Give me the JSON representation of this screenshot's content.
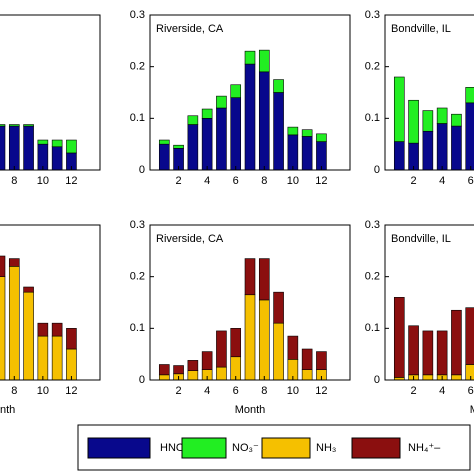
{
  "chart_data": [
    {
      "type": "bar",
      "stacked": true,
      "x": [
        7,
        8,
        9,
        10,
        11,
        12
      ],
      "xlim": [
        0,
        14
      ],
      "xticks": [
        8,
        10,
        12
      ],
      "ylim": [
        0,
        0.3
      ],
      "series": [
        {
          "name": "HNO₃",
          "color": "#08088c",
          "values": [
            0.085,
            0.085,
            0.085,
            0.05,
            0.045,
            0.033
          ]
        },
        {
          "name": "NO₃⁻",
          "color": "#22ee22",
          "values": [
            0.003,
            0.003,
            0.003,
            0.008,
            0.013,
            0.025
          ]
        }
      ]
    },
    {
      "type": "bar",
      "stacked": true,
      "title": "Riverside, CA",
      "x": [
        1,
        2,
        3,
        4,
        5,
        6,
        7,
        8,
        9,
        10,
        11,
        12
      ],
      "xlim": [
        0,
        14
      ],
      "xticks": [
        2,
        4,
        6,
        8,
        10,
        12
      ],
      "ylim": [
        0,
        0.3
      ],
      "yticks": [
        0,
        0.1,
        0.2,
        0.3
      ],
      "series": [
        {
          "name": "HNO₃",
          "color": "#08088c",
          "values": [
            0.05,
            0.042,
            0.088,
            0.1,
            0.12,
            0.14,
            0.205,
            0.19,
            0.15,
            0.068,
            0.065,
            0.055
          ]
        },
        {
          "name": "NO₃⁻",
          "color": "#22ee22",
          "values": [
            0.008,
            0.006,
            0.017,
            0.018,
            0.023,
            0.025,
            0.025,
            0.042,
            0.025,
            0.015,
            0.013,
            0.015
          ]
        }
      ]
    },
    {
      "type": "bar",
      "stacked": true,
      "title": "Bondville, IL",
      "x": [
        1,
        2,
        3,
        4,
        5,
        6
      ],
      "xlim": [
        0,
        14
      ],
      "xticks": [
        2,
        4,
        6
      ],
      "ylim": [
        0,
        0.3
      ],
      "yticks": [
        0,
        0.1,
        0.2,
        0.3
      ],
      "series": [
        {
          "name": "HNO₃",
          "color": "#08088c",
          "values": [
            0.055,
            0.052,
            0.075,
            0.09,
            0.085,
            0.13
          ]
        },
        {
          "name": "NO₃⁻",
          "color": "#22ee22",
          "values": [
            0.125,
            0.083,
            0.04,
            0.03,
            0.023,
            0.03
          ]
        }
      ]
    },
    {
      "type": "bar",
      "stacked": true,
      "xlabel": "Month",
      "x": [
        7,
        8,
        9,
        10,
        11,
        12
      ],
      "xlim": [
        0,
        14
      ],
      "xticks": [
        8,
        10,
        12
      ],
      "ylim": [
        0,
        0.3
      ],
      "series": [
        {
          "name": "NH₃",
          "color": "#f5c000",
          "values": [
            0.2,
            0.22,
            0.17,
            0.085,
            0.085,
            0.06
          ]
        },
        {
          "name": "NH₄⁺–",
          "color": "#8b0f0f",
          "values": [
            0.04,
            0.015,
            0.01,
            0.025,
            0.025,
            0.04
          ]
        }
      ]
    },
    {
      "type": "bar",
      "stacked": true,
      "title": "Riverside, CA",
      "xlabel": "Month",
      "x": [
        1,
        2,
        3,
        4,
        5,
        6,
        7,
        8,
        9,
        10,
        11,
        12
      ],
      "xlim": [
        0,
        14
      ],
      "xticks": [
        2,
        4,
        6,
        8,
        10,
        12
      ],
      "ylim": [
        0,
        0.3
      ],
      "yticks": [
        0,
        0.1,
        0.2,
        0.3
      ],
      "series": [
        {
          "name": "NH₃",
          "color": "#f5c000",
          "values": [
            0.01,
            0.012,
            0.018,
            0.02,
            0.025,
            0.045,
            0.165,
            0.155,
            0.11,
            0.04,
            0.02,
            0.02
          ]
        },
        {
          "name": "NH₄⁺–",
          "color": "#8b0f0f",
          "values": [
            0.02,
            0.016,
            0.02,
            0.035,
            0.07,
            0.055,
            0.07,
            0.08,
            0.06,
            0.045,
            0.04,
            0.035
          ]
        }
      ]
    },
    {
      "type": "bar",
      "stacked": true,
      "title": "Bondville, IL",
      "xlabel": "Month",
      "x": [
        1,
        2,
        3,
        4,
        5,
        6
      ],
      "xlim": [
        0,
        14
      ],
      "xticks": [
        2,
        4,
        6
      ],
      "ylim": [
        0,
        0.3
      ],
      "yticks": [
        0,
        0.1,
        0.2,
        0.3
      ],
      "series": [
        {
          "name": "NH₃",
          "color": "#f5c000",
          "values": [
            0.005,
            0.01,
            0.01,
            0.01,
            0.01,
            0.03
          ]
        },
        {
          "name": "NH₄⁺–",
          "color": "#8b0f0f",
          "values": [
            0.155,
            0.095,
            0.085,
            0.085,
            0.125,
            0.11
          ]
        }
      ]
    }
  ]
}
